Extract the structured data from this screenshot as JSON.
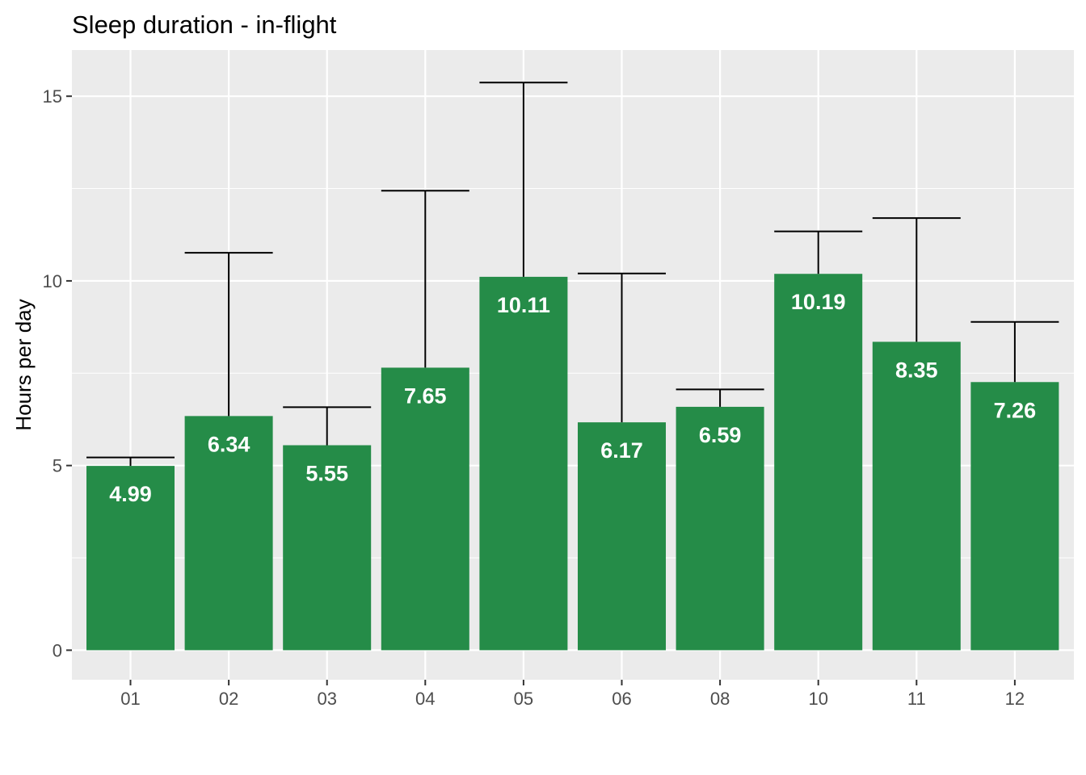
{
  "chart_data": {
    "type": "bar",
    "title": "Sleep duration - in-flight",
    "xlabel": "",
    "ylabel": "Hours per day",
    "categories": [
      "01",
      "02",
      "03",
      "04",
      "05",
      "06",
      "08",
      "10",
      "11",
      "12"
    ],
    "values": [
      4.99,
      6.34,
      5.55,
      7.65,
      10.11,
      6.17,
      6.59,
      10.19,
      8.35,
      7.26
    ],
    "value_labels": [
      "4.99",
      "6.34",
      "5.55",
      "7.65",
      "10.11",
      "6.17",
      "6.59",
      "10.19",
      "8.35",
      "7.26"
    ],
    "error_upper": [
      5.22,
      10.76,
      6.58,
      12.44,
      15.37,
      10.2,
      7.06,
      11.34,
      11.7,
      8.89
    ],
    "ylim": [
      -0.8,
      16.25
    ],
    "yticks": [
      0,
      5,
      10,
      15
    ],
    "ytick_labels": [
      "0",
      "5",
      "10",
      "15"
    ],
    "grid": true,
    "legend": "none",
    "colors": {
      "bar": "#258c48",
      "panel": "#ebebeb",
      "grid": "#ffffff",
      "errorbar": "#000000",
      "tick_text": "#4d4d4d"
    }
  }
}
